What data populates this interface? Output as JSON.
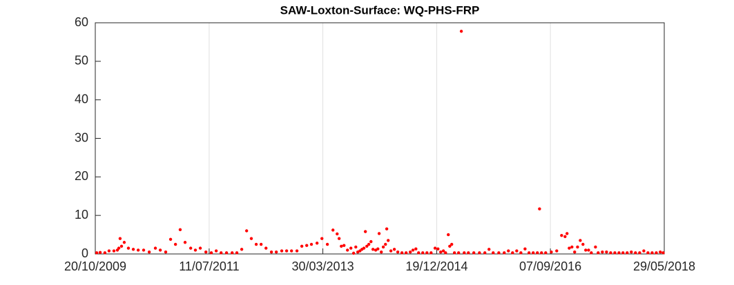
{
  "chart_data": {
    "type": "scatter",
    "title": "SAW-Loxton-Surface: WQ-PHS-FRP",
    "color": "#ff0000",
    "xgrid": true,
    "ygrid": false,
    "xlim": [
      "2009-10-20",
      "2018-05-29"
    ],
    "xticks": [
      {
        "value": "2009-10-20",
        "label": "20/10/2009"
      },
      {
        "value": "2011-07-11",
        "label": "11/07/2011"
      },
      {
        "value": "2013-03-30",
        "label": "30/03/2013"
      },
      {
        "value": "2014-12-19",
        "label": "19/12/2014"
      },
      {
        "value": "2016-09-07",
        "label": "07/09/2016"
      },
      {
        "value": "2018-05-29",
        "label": "29/05/2018"
      }
    ],
    "ylim": [
      0,
      60
    ],
    "yticks": [
      0,
      10,
      20,
      30,
      40,
      50,
      60
    ],
    "x": [
      "2009-10-28",
      "2009-11-16",
      "2009-12-12",
      "2010-01-04",
      "2010-01-31",
      "2010-02-19",
      "2010-02-27",
      "2010-03-06",
      "2010-03-14",
      "2010-03-29",
      "2010-04-21",
      "2010-05-18",
      "2010-06-14",
      "2010-07-14",
      "2010-08-14",
      "2010-09-17",
      "2010-10-14",
      "2010-11-13",
      "2010-12-10",
      "2011-01-06",
      "2011-02-01",
      "2011-02-28",
      "2011-03-31",
      "2011-04-26",
      "2011-05-23",
      "2011-06-23",
      "2011-07-23",
      "2011-08-19",
      "2011-09-15",
      "2011-10-15",
      "2011-11-15",
      "2011-12-11",
      "2012-01-07",
      "2012-02-03",
      "2012-02-29",
      "2012-03-27",
      "2012-04-23",
      "2012-05-20",
      "2012-06-19",
      "2012-07-16",
      "2012-08-15",
      "2012-09-11",
      "2012-10-08",
      "2012-11-07",
      "2012-12-04",
      "2012-12-31",
      "2013-01-26",
      "2013-02-26",
      "2013-03-25",
      "2013-04-24",
      "2013-05-25",
      "2013-06-17",
      "2013-06-28",
      "2013-07-10",
      "2013-07-25",
      "2013-08-13",
      "2013-09-01",
      "2013-09-16",
      "2013-09-28",
      "2013-10-09",
      "2013-10-21",
      "2013-11-01",
      "2013-11-12",
      "2013-11-20",
      "2013-11-28",
      "2013-12-09",
      "2013-12-21",
      "2014-01-01",
      "2014-01-16",
      "2014-01-28",
      "2014-02-04",
      "2014-02-16",
      "2014-02-27",
      "2014-03-11",
      "2014-03-18",
      "2014-03-26",
      "2014-04-10",
      "2014-04-29",
      "2014-05-18",
      "2014-06-10",
      "2014-07-03",
      "2014-07-26",
      "2014-08-10",
      "2014-08-26",
      "2014-09-10",
      "2014-10-03",
      "2014-10-26",
      "2014-11-18",
      "2014-12-10",
      "2014-12-26",
      "2015-01-10",
      "2015-01-25",
      "2015-02-06",
      "2015-02-21",
      "2015-03-01",
      "2015-03-12",
      "2015-03-27",
      "2015-04-19",
      "2015-05-04",
      "2015-05-20",
      "2015-06-12",
      "2015-07-12",
      "2015-08-12",
      "2015-09-11",
      "2015-10-04",
      "2015-10-27",
      "2015-11-27",
      "2015-12-27",
      "2016-01-19",
      "2016-02-11",
      "2016-03-05",
      "2016-03-28",
      "2016-04-20",
      "2016-05-12",
      "2016-06-04",
      "2016-06-27",
      "2016-07-09",
      "2016-07-20",
      "2016-08-12",
      "2016-09-12",
      "2016-10-12",
      "2016-11-08",
      "2016-11-27",
      "2016-12-08",
      "2016-12-20",
      "2017-01-04",
      "2017-01-19",
      "2017-02-04",
      "2017-02-19",
      "2017-03-06",
      "2017-03-21",
      "2017-04-06",
      "2017-04-21",
      "2017-05-14",
      "2017-05-29",
      "2017-06-21",
      "2017-07-14",
      "2017-08-06",
      "2017-08-29",
      "2017-09-21",
      "2017-10-13",
      "2017-11-05",
      "2017-11-28",
      "2017-12-21",
      "2018-01-13",
      "2018-02-05",
      "2018-02-28",
      "2018-03-23",
      "2018-04-15",
      "2018-05-07",
      "2018-05-23"
    ],
    "values": [
      0.3,
      0.4,
      0.3,
      0.8,
      0.8,
      1.0,
      1.5,
      4.0,
      2.0,
      3.0,
      1.5,
      1.2,
      1.0,
      1.0,
      0.5,
      1.5,
      1.0,
      0.5,
      3.8,
      2.5,
      6.3,
      3.0,
      1.5,
      1.0,
      1.5,
      0.5,
      0.3,
      0.8,
      0.3,
      0.3,
      0.3,
      0.3,
      1.2,
      6.0,
      4.0,
      2.5,
      2.5,
      1.5,
      0.5,
      0.5,
      0.8,
      0.8,
      0.8,
      0.8,
      2.0,
      2.2,
      2.5,
      2.8,
      4.0,
      2.5,
      6.2,
      5.2,
      4.0,
      2.0,
      2.2,
      1.0,
      1.5,
      0.2,
      1.8,
      0.5,
      0.8,
      1.2,
      1.5,
      5.8,
      2.0,
      2.5,
      3.2,
      1.2,
      1.0,
      1.3,
      5.3,
      0.5,
      1.8,
      2.5,
      6.5,
      3.5,
      0.8,
      1.2,
      0.5,
      0.3,
      0.3,
      0.5,
      1.0,
      1.3,
      0.3,
      0.3,
      0.3,
      0.3,
      1.5,
      1.3,
      0.5,
      0.8,
      0.3,
      5.0,
      2.0,
      2.5,
      0.3,
      0.3,
      57.8,
      0.3,
      0.3,
      0.3,
      0.3,
      0.3,
      1.2,
      0.3,
      0.3,
      0.3,
      0.8,
      0.3,
      0.8,
      0.3,
      1.3,
      0.3,
      0.3,
      0.3,
      11.7,
      0.3,
      0.3,
      0.5,
      0.8,
      4.8,
      4.5,
      5.3,
      1.5,
      1.8,
      0.5,
      1.8,
      3.5,
      2.5,
      1.0,
      1.0,
      0.3,
      1.8,
      0.3,
      0.5,
      0.5,
      0.3,
      0.3,
      0.3,
      0.3,
      0.3,
      0.5,
      0.3,
      0.3,
      0.8,
      0.3,
      0.3,
      0.3,
      0.5,
      0.3
    ]
  }
}
